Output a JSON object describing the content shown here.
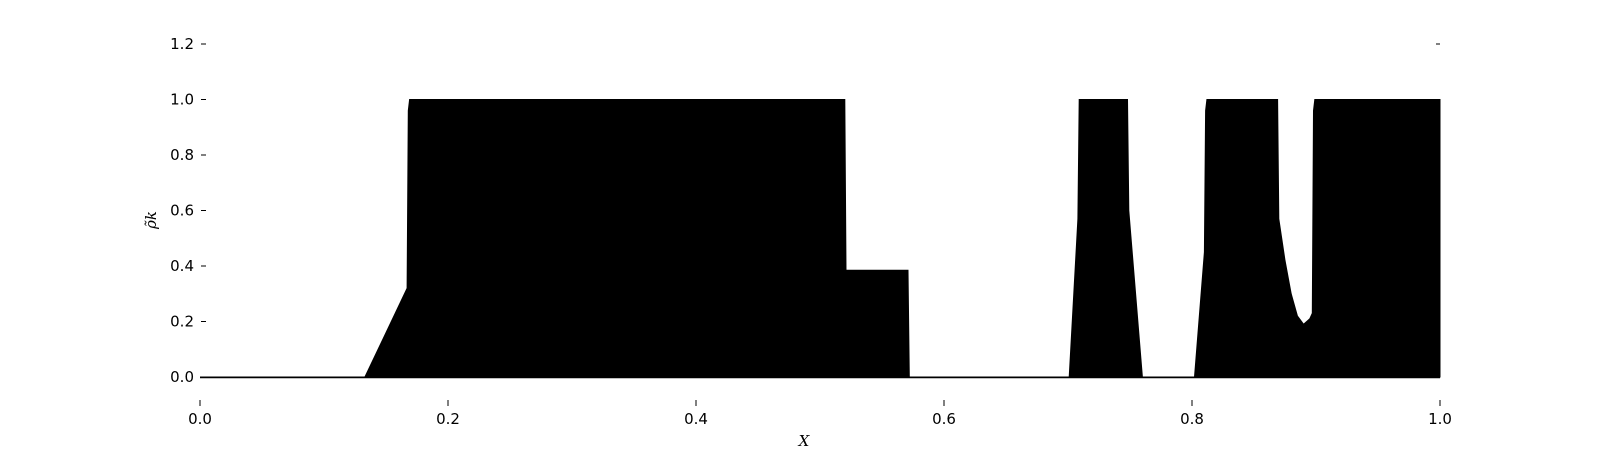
{
  "chart_data": {
    "type": "area",
    "title": "",
    "xlabel": "X",
    "ylabel": "ρ̃k",
    "xlim": [
      0.0,
      1.0
    ],
    "ylim": [
      0.0,
      1.2
    ],
    "grid": false,
    "legend": "none",
    "fill_color": "#000000",
    "x_ticks": [
      "0.0",
      "0.2",
      "0.4",
      "0.6",
      "0.8",
      "1.0"
    ],
    "y_ticks": [
      "0.0",
      "0.2",
      "0.4",
      "0.6",
      "0.8",
      "1.0",
      "1.2"
    ],
    "series": [
      {
        "points": [
          [
            0.0,
            0.0
          ],
          [
            0.133,
            0.0
          ],
          [
            0.167,
            0.32
          ],
          [
            0.168,
            0.96
          ],
          [
            0.169,
            1.0
          ],
          [
            0.52,
            1.0
          ],
          [
            0.521,
            0.385
          ],
          [
            0.571,
            0.385
          ],
          [
            0.572,
            0.0
          ],
          [
            0.701,
            0.0
          ],
          [
            0.708,
            0.57
          ],
          [
            0.709,
            1.0
          ],
          [
            0.748,
            1.0
          ],
          [
            0.749,
            0.6
          ],
          [
            0.76,
            0.0
          ],
          [
            0.802,
            0.0
          ],
          [
            0.81,
            0.45
          ],
          [
            0.811,
            0.96
          ],
          [
            0.812,
            1.0
          ],
          [
            0.869,
            1.0
          ],
          [
            0.87,
            0.57
          ],
          [
            0.875,
            0.42
          ],
          [
            0.88,
            0.3
          ],
          [
            0.885,
            0.22
          ],
          [
            0.89,
            0.19
          ],
          [
            0.895,
            0.21
          ],
          [
            0.897,
            0.23
          ],
          [
            0.898,
            0.96
          ],
          [
            0.899,
            1.0
          ],
          [
            1.0,
            1.0
          ],
          [
            1.0,
            0.0
          ]
        ]
      }
    ]
  }
}
